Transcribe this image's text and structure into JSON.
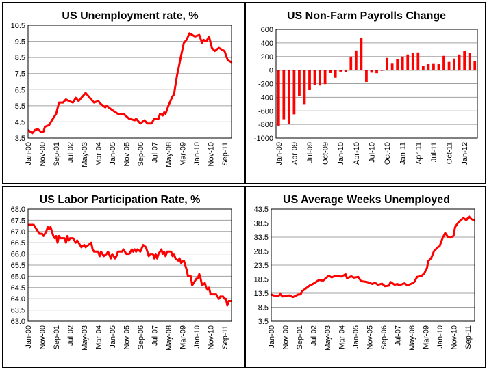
{
  "colors": {
    "series": "#ff0000",
    "grid": "#a0a0a0",
    "frame": "#000000"
  },
  "chart_data": [
    {
      "type": "line",
      "title": "US Unemployment rate, %",
      "xlabel": "",
      "ylabel": "",
      "x_unit": "months since Jan-00",
      "xlim": [
        0,
        145
      ],
      "ylim": [
        3.5,
        10.5
      ],
      "yticks": [
        "3.5",
        "4.5",
        "5.5",
        "6.5",
        "7.5",
        "8.5",
        "9.5",
        "10.5"
      ],
      "xticks": [
        "Jan-00",
        "Nov-00",
        "Sep-01",
        "Jul-02",
        "May-03",
        "Mar-04",
        "Jan-05",
        "Nov-05",
        "Sep-06",
        "Jul-07",
        "May-08",
        "Mar-09",
        "Jan-10",
        "Nov-10",
        "Sep-11"
      ],
      "grid": true,
      "points": [
        [
          0,
          4.0
        ],
        [
          3,
          3.8
        ],
        [
          5,
          4.0
        ],
        [
          7,
          4.05
        ],
        [
          9,
          3.9
        ],
        [
          11,
          3.9
        ],
        [
          12,
          4.2
        ],
        [
          15,
          4.3
        ],
        [
          17,
          4.6
        ],
        [
          20,
          5.0
        ],
        [
          22,
          5.7
        ],
        [
          25,
          5.7
        ],
        [
          27,
          5.9
        ],
        [
          29,
          5.8
        ],
        [
          32,
          5.7
        ],
        [
          34,
          6.0
        ],
        [
          36,
          5.8
        ],
        [
          38,
          6.0
        ],
        [
          41,
          6.3
        ],
        [
          44,
          6.0
        ],
        [
          47,
          5.7
        ],
        [
          50,
          5.8
        ],
        [
          52,
          5.6
        ],
        [
          55,
          5.4
        ],
        [
          56,
          5.5
        ],
        [
          59,
          5.3
        ],
        [
          64,
          5.0
        ],
        [
          68,
          5.0
        ],
        [
          72,
          4.7
        ],
        [
          76,
          4.6
        ],
        [
          77,
          4.7
        ],
        [
          80,
          4.4
        ],
        [
          83,
          4.6
        ],
        [
          85,
          4.4
        ],
        [
          88,
          4.4
        ],
        [
          90,
          4.7
        ],
        [
          93,
          4.7
        ],
        [
          94,
          5.0
        ],
        [
          96,
          4.9
        ],
        [
          97,
          5.1
        ],
        [
          98,
          5.0
        ],
        [
          100,
          5.5
        ],
        [
          103,
          6.1
        ],
        [
          104,
          6.2
        ],
        [
          106,
          7.3
        ],
        [
          109,
          8.6
        ],
        [
          111,
          9.4
        ],
        [
          113,
          9.6
        ],
        [
          115,
          10.0
        ],
        [
          117,
          9.9
        ],
        [
          119,
          9.8
        ],
        [
          122,
          9.9
        ],
        [
          124,
          9.4
        ],
        [
          125,
          9.6
        ],
        [
          127,
          9.5
        ],
        [
          129,
          9.8
        ],
        [
          131,
          9.1
        ],
        [
          133,
          8.9
        ],
        [
          136,
          9.1
        ],
        [
          138,
          9.0
        ],
        [
          140,
          8.9
        ],
        [
          142,
          8.4
        ],
        [
          143,
          8.3
        ],
        [
          145,
          8.2
        ]
      ]
    },
    {
      "type": "bar",
      "title": "US Non-Farm Payrolls Change",
      "xlabel": "",
      "ylabel": "",
      "ylim": [
        -1000,
        600
      ],
      "yticks": [
        "-1000",
        "-800",
        "-600",
        "-400",
        "-200",
        "0",
        "200",
        "400",
        "600"
      ],
      "xticks": [
        "Jan-09",
        "Apr-09",
        "Jul-09",
        "Oct-09",
        "Jan-10",
        "Apr-10",
        "Jul-10",
        "Oct-10",
        "Jan-11",
        "Apr-11",
        "Jul-11",
        "Oct-11",
        "Jan-12"
      ],
      "grid": true,
      "values": [
        -818,
        -724,
        -799,
        -652,
        -376,
        -501,
        -286,
        -220,
        -228,
        -207,
        -44,
        -112,
        -23,
        -25,
        200,
        290,
        474,
        -175,
        -38,
        -46,
        -10,
        180,
        104,
        160,
        200,
        230,
        250,
        260,
        60,
        90,
        100,
        90,
        210,
        120,
        170,
        230,
        280,
        250,
        130
      ]
    },
    {
      "type": "line",
      "title": "US Labor Participation Rate, %",
      "xlabel": "",
      "ylabel": "",
      "x_unit": "months since Jan-00",
      "xlim": [
        0,
        145
      ],
      "ylim": [
        63.0,
        68.0
      ],
      "yticks": [
        "63.0",
        "63.5",
        "64.0",
        "64.5",
        "65.0",
        "65.5",
        "66.0",
        "66.5",
        "67.0",
        "67.5",
        "68.0"
      ],
      "xticks": [
        "Jan-00",
        "Nov-00",
        "Sep-01",
        "Jul-02",
        "May-03",
        "Mar-04",
        "Jan-05",
        "Nov-05",
        "Sep-06",
        "Jul-07",
        "May-08",
        "Mar-09",
        "Jan-10",
        "Nov-10",
        "Sep-11"
      ],
      "grid": true,
      "points": [
        [
          0,
          67.3
        ],
        [
          4,
          67.3
        ],
        [
          6,
          67.1
        ],
        [
          8,
          66.9
        ],
        [
          10,
          66.9
        ],
        [
          11,
          66.8
        ],
        [
          13,
          67.0
        ],
        [
          14,
          67.2
        ],
        [
          15,
          67.1
        ],
        [
          16,
          67.2
        ],
        [
          18,
          66.8
        ],
        [
          19,
          66.7
        ],
        [
          20,
          66.8
        ],
        [
          21,
          66.5
        ],
        [
          22,
          66.8
        ],
        [
          23,
          66.7
        ],
        [
          26,
          66.7
        ],
        [
          27,
          66.5
        ],
        [
          28,
          66.8
        ],
        [
          29,
          66.6
        ],
        [
          30,
          66.7
        ],
        [
          32,
          66.7
        ],
        [
          34,
          66.5
        ],
        [
          35,
          66.6
        ],
        [
          37,
          66.4
        ],
        [
          38,
          66.3
        ],
        [
          40,
          66.4
        ],
        [
          41,
          66.3
        ],
        [
          43,
          66.4
        ],
        [
          45,
          66.5
        ],
        [
          46,
          66.2
        ],
        [
          47,
          66.1
        ],
        [
          50,
          66.1
        ],
        [
          51,
          65.9
        ],
        [
          52,
          66.1
        ],
        [
          54,
          65.9
        ],
        [
          56,
          66.0
        ],
        [
          57,
          66.1
        ],
        [
          59,
          65.8
        ],
        [
          60,
          66.0
        ],
        [
          62,
          65.8
        ],
        [
          63,
          65.9
        ],
        [
          64,
          66.1
        ],
        [
          67,
          66.1
        ],
        [
          68,
          66.2
        ],
        [
          70,
          66.0
        ],
        [
          72,
          66.0
        ],
        [
          74,
          66.2
        ],
        [
          75,
          66.1
        ],
        [
          76,
          66.2
        ],
        [
          77,
          66.1
        ],
        [
          78,
          66.2
        ],
        [
          80,
          66.1
        ],
        [
          82,
          66.4
        ],
        [
          84,
          66.3
        ],
        [
          86,
          65.9
        ],
        [
          87,
          66.0
        ],
        [
          89,
          66.0
        ],
        [
          90,
          65.8
        ],
        [
          91,
          66.0
        ],
        [
          92,
          65.8
        ],
        [
          93,
          66.0
        ],
        [
          95,
          66.2
        ],
        [
          96,
          66.0
        ],
        [
          97,
          66.1
        ],
        [
          98,
          65.9
        ],
        [
          99,
          66.1
        ],
        [
          102,
          66.1
        ],
        [
          103,
          65.9
        ],
        [
          104,
          66.0
        ],
        [
          105,
          65.8
        ],
        [
          107,
          65.7
        ],
        [
          108,
          65.8
        ],
        [
          109,
          65.6
        ],
        [
          111,
          65.7
        ],
        [
          112,
          65.5
        ],
        [
          113,
          65.3
        ],
        [
          114,
          65.0
        ],
        [
          116,
          65.0
        ],
        [
          117,
          64.6
        ],
        [
          119,
          64.8
        ],
        [
          120,
          64.9
        ],
        [
          121,
          64.9
        ],
        [
          122,
          65.1
        ],
        [
          123,
          64.9
        ],
        [
          124,
          64.6
        ],
        [
          126,
          64.7
        ],
        [
          127,
          64.5
        ],
        [
          128,
          64.4
        ],
        [
          129,
          64.5
        ],
        [
          130,
          64.2
        ],
        [
          134,
          64.2
        ],
        [
          136,
          64.0
        ],
        [
          137,
          64.1
        ],
        [
          139,
          64.1
        ],
        [
          140,
          64.0
        ],
        [
          141,
          64.0
        ],
        [
          142,
          63.7
        ],
        [
          143,
          63.9
        ],
        [
          145,
          63.9
        ]
      ]
    },
    {
      "type": "line",
      "title": "US Average Weeks Unemployed",
      "xlabel": "",
      "ylabel": "",
      "x_unit": "months since Jan-00",
      "xlim": [
        0,
        145
      ],
      "ylim": [
        3.5,
        43.5
      ],
      "yticks": [
        "3.5",
        "8.5",
        "13.5",
        "18.5",
        "23.5",
        "28.5",
        "33.5",
        "38.5",
        "43.5"
      ],
      "xticks": [
        "Jan-00",
        "Nov-00",
        "Sep-01",
        "Jul-02",
        "May-03",
        "Mar-04",
        "Jan-05",
        "Nov-05",
        "Sep-06",
        "Jul-07",
        "May-08",
        "Mar-09",
        "Jan-10",
        "Nov-10",
        "Sep-11"
      ],
      "grid": true,
      "points": [
        [
          0,
          13.0
        ],
        [
          3,
          12.5
        ],
        [
          5,
          12.4
        ],
        [
          6.5,
          13.2
        ],
        [
          8,
          12.3
        ],
        [
          10,
          12.6
        ],
        [
          13,
          12.7
        ],
        [
          15.5,
          12.1
        ],
        [
          19,
          13.0
        ],
        [
          21,
          13.1
        ],
        [
          22,
          14.2
        ],
        [
          24,
          15.0
        ],
        [
          28,
          16.5
        ],
        [
          29,
          16.6
        ],
        [
          32,
          17.5
        ],
        [
          34,
          18.2
        ],
        [
          37,
          18.0
        ],
        [
          40,
          19.3
        ],
        [
          41,
          19.7
        ],
        [
          43,
          19.1
        ],
        [
          46,
          19.7
        ],
        [
          50,
          19.4
        ],
        [
          53,
          20.2
        ],
        [
          54,
          18.8
        ],
        [
          57,
          19.5
        ],
        [
          59,
          19.0
        ],
        [
          62,
          19.3
        ],
        [
          64,
          17.8
        ],
        [
          68,
          17.5
        ],
        [
          72,
          16.8
        ],
        [
          74,
          17.2
        ],
        [
          76,
          16.5
        ],
        [
          79,
          16.9
        ],
        [
          81,
          16.0
        ],
        [
          84,
          16.2
        ],
        [
          85,
          17.5
        ],
        [
          88,
          16.5
        ],
        [
          90,
          16.8
        ],
        [
          91,
          16.3
        ],
        [
          95,
          17.0
        ],
        [
          97,
          16.3
        ],
        [
          100,
          16.9
        ],
        [
          102,
          17.5
        ],
        [
          104,
          19.3
        ],
        [
          107,
          19.6
        ],
        [
          109,
          20.5
        ],
        [
          111,
          22.5
        ],
        [
          112,
          25.0
        ],
        [
          114,
          26.0
        ],
        [
          116,
          28.5
        ],
        [
          119,
          30.0
        ],
        [
          120,
          30.2
        ],
        [
          122,
          33.0
        ],
        [
          124,
          35.0
        ],
        [
          126,
          33.5
        ],
        [
          128,
          33.3
        ],
        [
          130,
          34.0
        ],
        [
          131,
          37.0
        ],
        [
          133,
          38.5
        ],
        [
          135,
          39.5
        ],
        [
          137,
          40.3
        ],
        [
          138,
          40.0
        ],
        [
          139,
          39.5
        ],
        [
          141,
          40.9
        ],
        [
          142.5,
          40.0
        ],
        [
          145,
          39.4
        ]
      ]
    }
  ]
}
